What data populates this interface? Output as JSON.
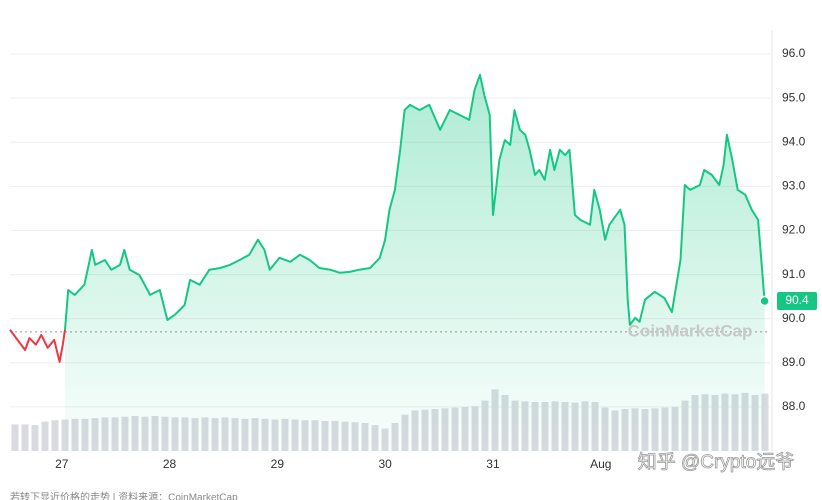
{
  "chart_data": {
    "type": "line",
    "xlim": [
      -0.48,
      6.57
    ],
    "xticks": [
      {
        "value": 0,
        "label": "27"
      },
      {
        "value": 1,
        "label": "28"
      },
      {
        "value": 2,
        "label": "29"
      },
      {
        "value": 3,
        "label": "30"
      },
      {
        "value": 4,
        "label": "31"
      },
      {
        "value": 5,
        "label": "Aug"
      }
    ],
    "ylim": [
      87,
      96.5
    ],
    "yticks": [
      {
        "value": 88,
        "label": "88.0"
      },
      {
        "value": 89,
        "label": "89.0"
      },
      {
        "value": 90,
        "label": "90.0"
      },
      {
        "value": 91,
        "label": "91.0"
      },
      {
        "value": 92,
        "label": "92.0"
      },
      {
        "value": 93,
        "label": "93.0"
      },
      {
        "value": 94,
        "label": "94.0"
      },
      {
        "value": 95,
        "label": "95.0"
      },
      {
        "value": 96,
        "label": "96.0"
      }
    ],
    "grid": true,
    "baseline": 89.7,
    "series": [
      {
        "color": "#ea3943",
        "x": [
          -0.48,
          -0.41,
          -0.34,
          -0.3,
          -0.24,
          -0.19,
          -0.13,
          -0.07,
          -0.02,
          0.01,
          0.03
        ],
        "values": [
          89.75,
          89.52,
          89.29,
          89.56,
          89.41,
          89.63,
          89.34,
          89.52,
          89.02,
          89.41,
          89.75
        ]
      },
      {
        "color": "#16c784",
        "x": [
          0.03,
          0.06,
          0.12,
          0.21,
          0.28,
          0.31,
          0.4,
          0.46,
          0.54,
          0.58,
          0.63,
          0.72,
          0.82,
          0.91,
          0.98,
          1.05,
          1.14,
          1.19,
          1.28,
          1.37,
          1.47,
          1.56,
          1.65,
          1.74,
          1.82,
          1.88,
          1.93,
          2.02,
          2.12,
          2.21,
          2.3,
          2.39,
          2.49,
          2.58,
          2.67,
          2.76,
          2.86,
          2.95,
          3.0,
          3.04,
          3.09,
          3.14,
          3.18,
          3.23,
          3.32,
          3.41,
          3.51,
          3.6,
          3.69,
          3.78,
          3.83,
          3.88,
          3.92,
          3.97,
          4.0,
          4.06,
          4.11,
          4.16,
          4.2,
          4.25,
          4.3,
          4.34,
          4.39,
          4.43,
          4.48,
          4.53,
          4.57,
          4.62,
          4.67,
          4.71,
          4.76,
          4.81,
          4.9,
          4.94,
          4.99,
          5.04,
          5.08,
          5.18,
          5.22,
          5.25,
          5.27,
          5.32,
          5.36,
          5.41,
          5.5,
          5.59,
          5.66,
          5.74,
          5.78,
          5.83,
          5.92,
          5.96,
          6.03,
          6.1,
          6.14,
          6.17,
          6.22,
          6.27,
          6.34,
          6.4,
          6.46,
          6.5,
          6.52
        ],
        "values": [
          89.75,
          90.65,
          90.54,
          90.77,
          91.56,
          91.22,
          91.33,
          91.11,
          91.22,
          91.56,
          91.11,
          90.99,
          90.54,
          90.65,
          89.97,
          90.09,
          90.31,
          90.88,
          90.77,
          91.11,
          91.15,
          91.22,
          91.33,
          91.45,
          91.79,
          91.56,
          91.11,
          91.38,
          91.29,
          91.45,
          91.33,
          91.15,
          91.11,
          91.04,
          91.06,
          91.11,
          91.15,
          91.38,
          91.79,
          92.47,
          92.92,
          93.83,
          94.73,
          94.85,
          94.73,
          94.85,
          94.28,
          94.73,
          94.62,
          94.51,
          95.19,
          95.53,
          95.07,
          94.62,
          92.35,
          93.6,
          94.05,
          93.94,
          94.73,
          94.28,
          94.17,
          93.83,
          93.26,
          93.37,
          93.15,
          93.83,
          93.37,
          93.83,
          93.71,
          93.83,
          92.35,
          92.24,
          92.13,
          92.92,
          92.47,
          91.79,
          92.13,
          92.47,
          92.13,
          90.43,
          89.86,
          90.02,
          89.93,
          90.43,
          90.61,
          90.47,
          90.15,
          91.33,
          93.03,
          92.92,
          93.03,
          93.37,
          93.26,
          93.03,
          93.49,
          94.17,
          93.6,
          92.92,
          92.81,
          92.47,
          92.24,
          90.99,
          90.4
        ]
      }
    ],
    "volume_lim": [
      0,
      100
    ],
    "volume": [
      38,
      38,
      37,
      42,
      44,
      45,
      46,
      46,
      47,
      48,
      48,
      49,
      50,
      49,
      50,
      49,
      48,
      48,
      47,
      48,
      47,
      48,
      47,
      46,
      47,
      46,
      45,
      46,
      45,
      44,
      44,
      43,
      43,
      42,
      41,
      40,
      37,
      32,
      40,
      52,
      58,
      59,
      60,
      61,
      62,
      63,
      64,
      72,
      88,
      80,
      72,
      71,
      70,
      70,
      71,
      70,
      69,
      71,
      70,
      62,
      58,
      60,
      61,
      60,
      61,
      62,
      63,
      72,
      80,
      81,
      80,
      82,
      81,
      83,
      80,
      82
    ],
    "watermarks": [
      "CoinMarketCap",
      "知乎 @Crypto远爷"
    ],
    "source": "若转下显近价格的走势 | 资料来源：CoinMarketCap"
  }
}
